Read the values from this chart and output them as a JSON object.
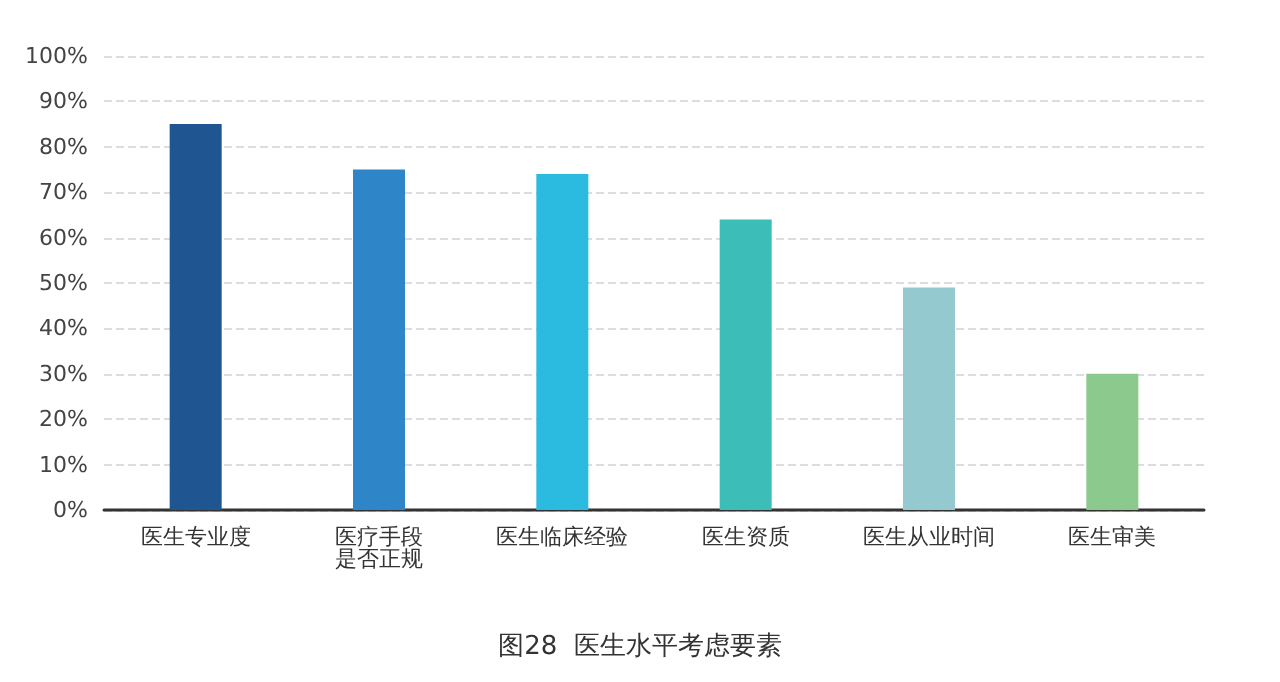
{
  "chart_data": {
    "type": "bar",
    "title": "图28  医生水平考虑要素",
    "categories": [
      "医生专业度",
      "医疗手段是否正规",
      "医生临床经验",
      "医生资质",
      "医生从业时间",
      "医生审美"
    ],
    "values": [
      85,
      75,
      74,
      64,
      49,
      30
    ],
    "colors": [
      "#1f5591",
      "#2e86c8",
      "#2bbbe0",
      "#3cbdb8",
      "#94c9cf",
      "#8cc98c"
    ],
    "ylim": [
      0,
      100
    ],
    "yticks": [
      {
        "value": 0,
        "label": "0%"
      },
      {
        "value": 10,
        "label": "10%"
      },
      {
        "value": 20,
        "label": "20%"
      },
      {
        "value": 30,
        "label": "30%"
      },
      {
        "value": 40,
        "label": "40%"
      },
      {
        "value": 50,
        "label": "50%"
      },
      {
        "value": 60,
        "label": "60%"
      },
      {
        "value": 70,
        "label": "70%"
      },
      {
        "value": 80,
        "label": "80%"
      },
      {
        "value": 90,
        "label": "90%"
      },
      {
        "value": 100,
        "label": "100%"
      }
    ],
    "grid": "y"
  }
}
